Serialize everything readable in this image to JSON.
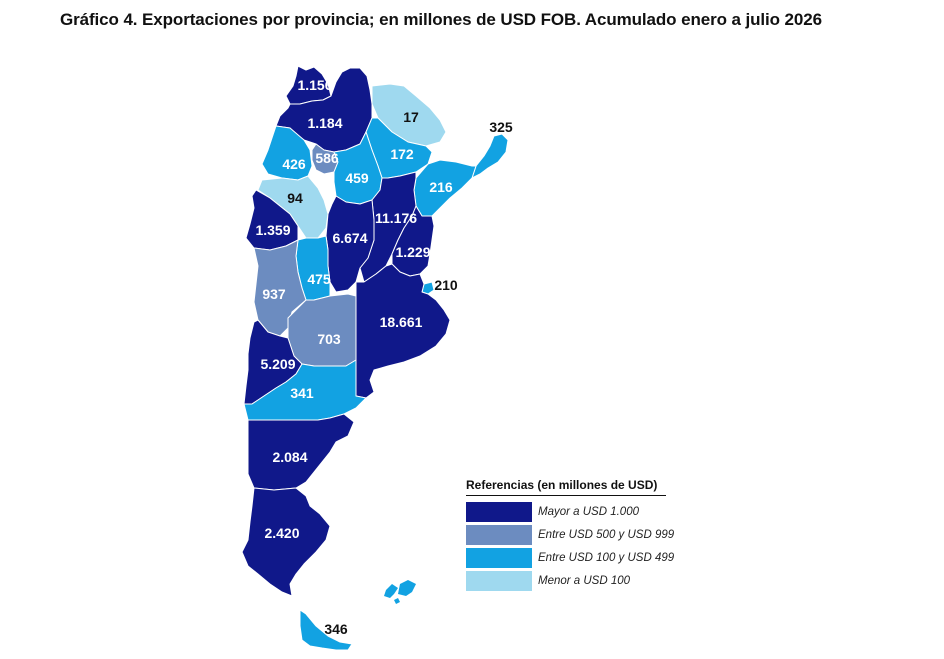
{
  "title": "Gráfico 4. Exportaciones por provincia; en millones de USD FOB. Acumulado enero a julio 2026",
  "colors": {
    "mayor_1000": "#10188a",
    "entre_500_999": "#6c8cc0",
    "entre_100_499": "#12a2e2",
    "menor_100": "#9fd9ef"
  },
  "provinces": [
    {
      "value": "1.156",
      "class": "mayor_1000"
    },
    {
      "value": "1.184",
      "class": "mayor_1000"
    },
    {
      "value": "17",
      "class": "menor_100"
    },
    {
      "value": "325",
      "class": "entre_100_499"
    },
    {
      "value": "426",
      "class": "entre_100_499"
    },
    {
      "value": "586",
      "class": "entre_500_999"
    },
    {
      "value": "172",
      "class": "entre_100_499"
    },
    {
      "value": "459",
      "class": "entre_100_499"
    },
    {
      "value": "216",
      "class": "entre_100_499"
    },
    {
      "value": "94",
      "class": "menor_100"
    },
    {
      "value": "11.176",
      "class": "mayor_1000"
    },
    {
      "value": "1.359",
      "class": "mayor_1000"
    },
    {
      "value": "6.674",
      "class": "mayor_1000"
    },
    {
      "value": "1.229",
      "class": "mayor_1000"
    },
    {
      "value": "475",
      "class": "entre_100_499"
    },
    {
      "value": "210",
      "class": "entre_100_499"
    },
    {
      "value": "937",
      "class": "entre_500_999"
    },
    {
      "value": "18.661",
      "class": "mayor_1000"
    },
    {
      "value": "703",
      "class": "entre_500_999"
    },
    {
      "value": "5.209",
      "class": "mayor_1000"
    },
    {
      "value": "341",
      "class": "entre_100_499"
    },
    {
      "value": "2.084",
      "class": "mayor_1000"
    },
    {
      "value": "2.420",
      "class": "mayor_1000"
    },
    {
      "value": "346",
      "class": "entre_100_499"
    }
  ],
  "legend": {
    "title": "Referencias (en millones de USD)",
    "items": [
      {
        "label": "Mayor a USD 1.000",
        "class": "mayor_1000"
      },
      {
        "label": "Entre USD 500 y USD 999",
        "class": "entre_500_999"
      },
      {
        "label": "Entre USD 100 y USD 499",
        "class": "entre_100_499"
      },
      {
        "label": "Menor a USD 100",
        "class": "menor_100"
      }
    ]
  }
}
